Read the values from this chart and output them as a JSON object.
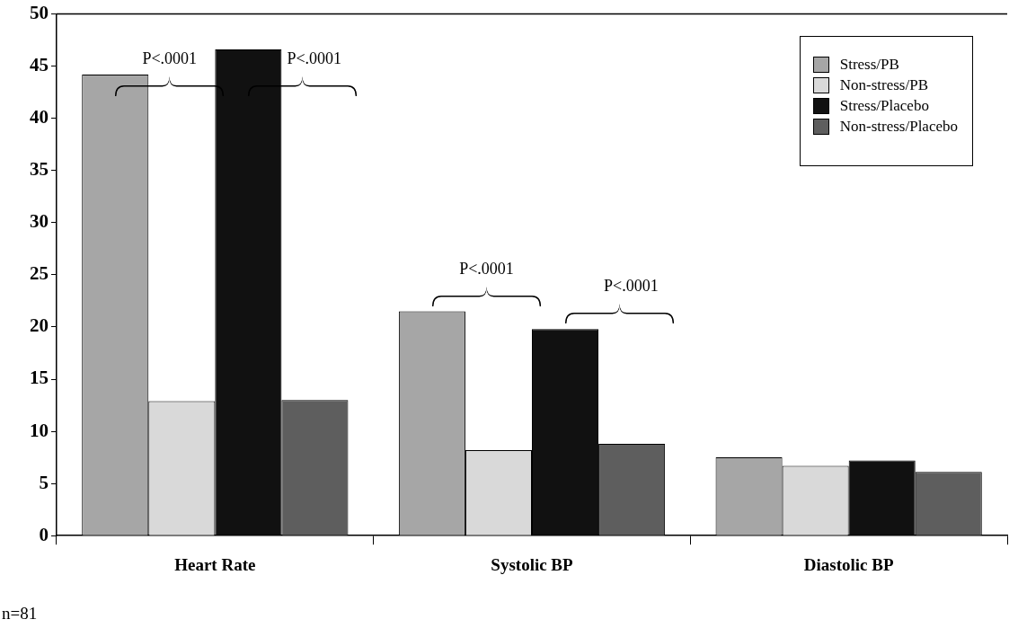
{
  "chart_data": {
    "type": "bar",
    "categories": [
      "Heart Rate",
      "Systolic BP",
      "Diastolic BP"
    ],
    "series": [
      {
        "name": "Stress/PB",
        "color": "#a6a6a6",
        "values": [
          44.2,
          21.5,
          7.5
        ]
      },
      {
        "name": "Non-stress/PB",
        "color": "#d9d9d9",
        "values": [
          12.9,
          8.2,
          6.7
        ]
      },
      {
        "name": "Stress/Placebo",
        "color": "#111111",
        "values": [
          46.6,
          19.8,
          7.2
        ]
      },
      {
        "name": "Non-stress/Placebo",
        "color": "#5e5e5e",
        "values": [
          13,
          8.8,
          6.1
        ]
      }
    ],
    "ylim": [
      0,
      50
    ],
    "yticks": [
      0,
      5,
      10,
      15,
      20,
      25,
      30,
      35,
      40,
      45,
      50
    ],
    "grid": false,
    "legend": "top right",
    "annotations": [
      "P<.0001",
      "P<.0001",
      "P<.0001",
      "P<.0001",
      "n=81"
    ]
  }
}
